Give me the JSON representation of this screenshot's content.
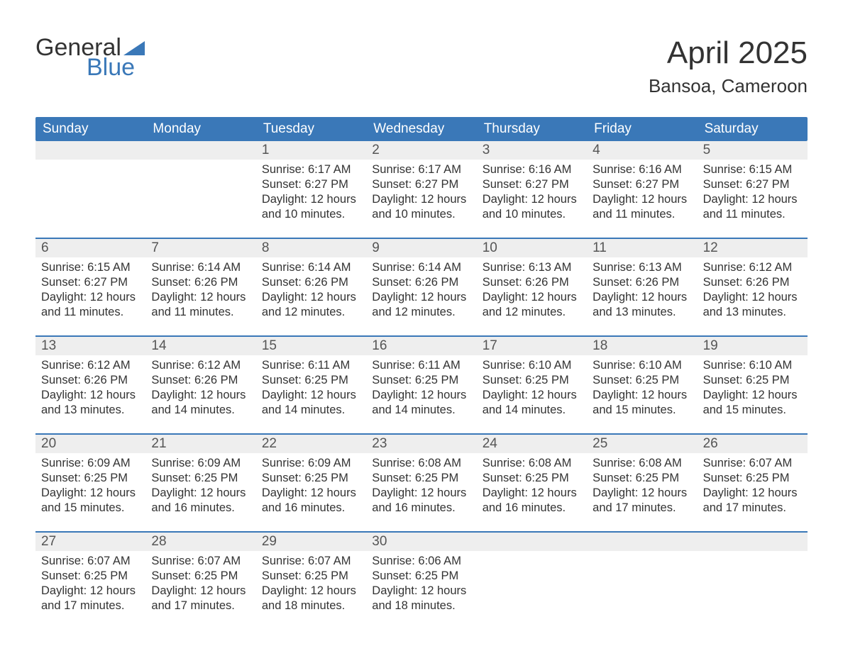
{
  "brand": {
    "word1": "General",
    "word2": "Blue",
    "accent": "#3a78b8"
  },
  "header": {
    "title": "April 2025",
    "location": "Bansoa, Cameroon"
  },
  "style": {
    "page_bg": "#ffffff",
    "header_bar_bg": "#3a78b8",
    "header_bar_fg": "#ffffff",
    "daynum_bg": "#eeeeee",
    "daynum_fg": "#555555",
    "body_text": "#333333",
    "week_divider": "#3a78b8",
    "title_fontsize": 44,
    "location_fontsize": 26,
    "dayhead_fontsize": 19,
    "daynum_fontsize": 19,
    "cell_fontsize": 16.5,
    "columns": 7
  },
  "day_names": [
    "Sunday",
    "Monday",
    "Tuesday",
    "Wednesday",
    "Thursday",
    "Friday",
    "Saturday"
  ],
  "weeks": [
    [
      null,
      null,
      {
        "n": "1",
        "sunrise": "Sunrise: 6:17 AM",
        "sunset": "Sunset: 6:27 PM",
        "d1": "Daylight: 12 hours",
        "d2": "and 10 minutes."
      },
      {
        "n": "2",
        "sunrise": "Sunrise: 6:17 AM",
        "sunset": "Sunset: 6:27 PM",
        "d1": "Daylight: 12 hours",
        "d2": "and 10 minutes."
      },
      {
        "n": "3",
        "sunrise": "Sunrise: 6:16 AM",
        "sunset": "Sunset: 6:27 PM",
        "d1": "Daylight: 12 hours",
        "d2": "and 10 minutes."
      },
      {
        "n": "4",
        "sunrise": "Sunrise: 6:16 AM",
        "sunset": "Sunset: 6:27 PM",
        "d1": "Daylight: 12 hours",
        "d2": "and 11 minutes."
      },
      {
        "n": "5",
        "sunrise": "Sunrise: 6:15 AM",
        "sunset": "Sunset: 6:27 PM",
        "d1": "Daylight: 12 hours",
        "d2": "and 11 minutes."
      }
    ],
    [
      {
        "n": "6",
        "sunrise": "Sunrise: 6:15 AM",
        "sunset": "Sunset: 6:27 PM",
        "d1": "Daylight: 12 hours",
        "d2": "and 11 minutes."
      },
      {
        "n": "7",
        "sunrise": "Sunrise: 6:14 AM",
        "sunset": "Sunset: 6:26 PM",
        "d1": "Daylight: 12 hours",
        "d2": "and 11 minutes."
      },
      {
        "n": "8",
        "sunrise": "Sunrise: 6:14 AM",
        "sunset": "Sunset: 6:26 PM",
        "d1": "Daylight: 12 hours",
        "d2": "and 12 minutes."
      },
      {
        "n": "9",
        "sunrise": "Sunrise: 6:14 AM",
        "sunset": "Sunset: 6:26 PM",
        "d1": "Daylight: 12 hours",
        "d2": "and 12 minutes."
      },
      {
        "n": "10",
        "sunrise": "Sunrise: 6:13 AM",
        "sunset": "Sunset: 6:26 PM",
        "d1": "Daylight: 12 hours",
        "d2": "and 12 minutes."
      },
      {
        "n": "11",
        "sunrise": "Sunrise: 6:13 AM",
        "sunset": "Sunset: 6:26 PM",
        "d1": "Daylight: 12 hours",
        "d2": "and 13 minutes."
      },
      {
        "n": "12",
        "sunrise": "Sunrise: 6:12 AM",
        "sunset": "Sunset: 6:26 PM",
        "d1": "Daylight: 12 hours",
        "d2": "and 13 minutes."
      }
    ],
    [
      {
        "n": "13",
        "sunrise": "Sunrise: 6:12 AM",
        "sunset": "Sunset: 6:26 PM",
        "d1": "Daylight: 12 hours",
        "d2": "and 13 minutes."
      },
      {
        "n": "14",
        "sunrise": "Sunrise: 6:12 AM",
        "sunset": "Sunset: 6:26 PM",
        "d1": "Daylight: 12 hours",
        "d2": "and 14 minutes."
      },
      {
        "n": "15",
        "sunrise": "Sunrise: 6:11 AM",
        "sunset": "Sunset: 6:25 PM",
        "d1": "Daylight: 12 hours",
        "d2": "and 14 minutes."
      },
      {
        "n": "16",
        "sunrise": "Sunrise: 6:11 AM",
        "sunset": "Sunset: 6:25 PM",
        "d1": "Daylight: 12 hours",
        "d2": "and 14 minutes."
      },
      {
        "n": "17",
        "sunrise": "Sunrise: 6:10 AM",
        "sunset": "Sunset: 6:25 PM",
        "d1": "Daylight: 12 hours",
        "d2": "and 14 minutes."
      },
      {
        "n": "18",
        "sunrise": "Sunrise: 6:10 AM",
        "sunset": "Sunset: 6:25 PM",
        "d1": "Daylight: 12 hours",
        "d2": "and 15 minutes."
      },
      {
        "n": "19",
        "sunrise": "Sunrise: 6:10 AM",
        "sunset": "Sunset: 6:25 PM",
        "d1": "Daylight: 12 hours",
        "d2": "and 15 minutes."
      }
    ],
    [
      {
        "n": "20",
        "sunrise": "Sunrise: 6:09 AM",
        "sunset": "Sunset: 6:25 PM",
        "d1": "Daylight: 12 hours",
        "d2": "and 15 minutes."
      },
      {
        "n": "21",
        "sunrise": "Sunrise: 6:09 AM",
        "sunset": "Sunset: 6:25 PM",
        "d1": "Daylight: 12 hours",
        "d2": "and 16 minutes."
      },
      {
        "n": "22",
        "sunrise": "Sunrise: 6:09 AM",
        "sunset": "Sunset: 6:25 PM",
        "d1": "Daylight: 12 hours",
        "d2": "and 16 minutes."
      },
      {
        "n": "23",
        "sunrise": "Sunrise: 6:08 AM",
        "sunset": "Sunset: 6:25 PM",
        "d1": "Daylight: 12 hours",
        "d2": "and 16 minutes."
      },
      {
        "n": "24",
        "sunrise": "Sunrise: 6:08 AM",
        "sunset": "Sunset: 6:25 PM",
        "d1": "Daylight: 12 hours",
        "d2": "and 16 minutes."
      },
      {
        "n": "25",
        "sunrise": "Sunrise: 6:08 AM",
        "sunset": "Sunset: 6:25 PM",
        "d1": "Daylight: 12 hours",
        "d2": "and 17 minutes."
      },
      {
        "n": "26",
        "sunrise": "Sunrise: 6:07 AM",
        "sunset": "Sunset: 6:25 PM",
        "d1": "Daylight: 12 hours",
        "d2": "and 17 minutes."
      }
    ],
    [
      {
        "n": "27",
        "sunrise": "Sunrise: 6:07 AM",
        "sunset": "Sunset: 6:25 PM",
        "d1": "Daylight: 12 hours",
        "d2": "and 17 minutes."
      },
      {
        "n": "28",
        "sunrise": "Sunrise: 6:07 AM",
        "sunset": "Sunset: 6:25 PM",
        "d1": "Daylight: 12 hours",
        "d2": "and 17 minutes."
      },
      {
        "n": "29",
        "sunrise": "Sunrise: 6:07 AM",
        "sunset": "Sunset: 6:25 PM",
        "d1": "Daylight: 12 hours",
        "d2": "and 18 minutes."
      },
      {
        "n": "30",
        "sunrise": "Sunrise: 6:06 AM",
        "sunset": "Sunset: 6:25 PM",
        "d1": "Daylight: 12 hours",
        "d2": "and 18 minutes."
      },
      null,
      null,
      null
    ]
  ]
}
